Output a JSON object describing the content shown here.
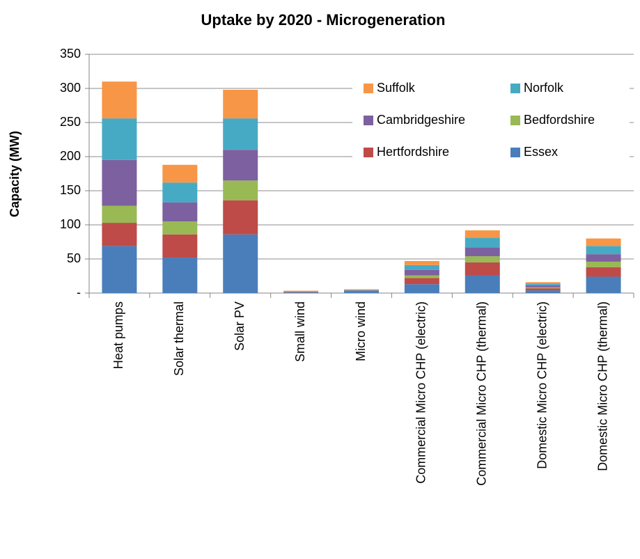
{
  "chart_data": {
    "type": "stacked_bar",
    "title": "Uptake by 2020 - Microgeneration",
    "y_label": "Capacity (MW)",
    "categories": [
      "Heat pumps",
      "Solar thermal",
      "Solar PV",
      "Small wind",
      "Micro wind",
      "Commercial Micro CHP (electric)",
      "Commercial Micro CHP (thermal)",
      "Domestic Micro CHP (electric)",
      "Domestic Micro CHP (thermal)"
    ],
    "series": [
      {
        "name": "Essex",
        "color": "#4a7ebb",
        "values": [
          69,
          52,
          86,
          1,
          2,
          13,
          26,
          4,
          24
        ]
      },
      {
        "name": "Hertfordshire",
        "color": "#be4b48",
        "values": [
          34,
          34,
          50,
          0.5,
          1,
          9,
          19,
          3,
          14
        ]
      },
      {
        "name": "Bedfordshire",
        "color": "#98b954",
        "values": [
          25,
          19,
          29,
          0.3,
          0.4,
          4,
          9,
          1.5,
          8
        ]
      },
      {
        "name": "Cambridgeshire",
        "color": "#7d60a0",
        "values": [
          67,
          28,
          45,
          0.5,
          0.8,
          8,
          13,
          3,
          11
        ]
      },
      {
        "name": "Norfolk",
        "color": "#46aac5",
        "values": [
          61,
          29,
          46,
          0.5,
          0.8,
          7,
          14,
          2.5,
          12
        ]
      },
      {
        "name": "Suffolk",
        "color": "#f79646",
        "values": [
          54,
          26,
          42,
          0.7,
          0.5,
          6,
          11,
          2,
          11
        ]
      }
    ],
    "ylim": [
      0,
      350
    ],
    "yticks": [
      {
        "value": 0,
        "label": "-"
      },
      50,
      100,
      150,
      200,
      250,
      300,
      350
    ],
    "grid": true,
    "legend": "upper right"
  }
}
